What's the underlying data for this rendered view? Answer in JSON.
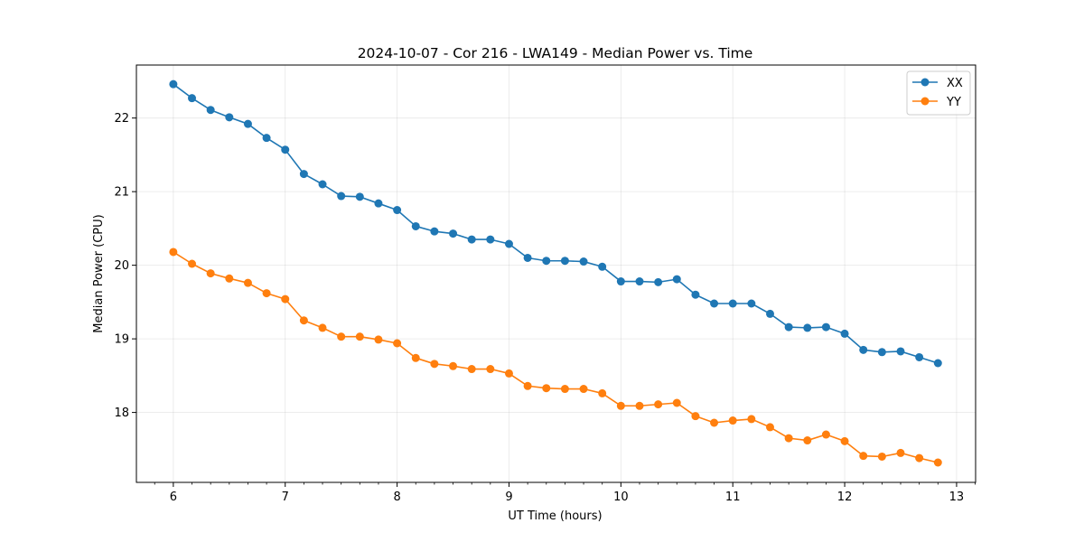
{
  "chart_data": {
    "type": "line",
    "title": "2024-10-07 - Cor 216 - LWA149 - Median Power vs. Time",
    "xlabel": "UT Time (hours)",
    "ylabel": "Median Power (CPU)",
    "xlim": [
      5.67,
      13.17
    ],
    "ylim": [
      17.05,
      22.72
    ],
    "xticks": [
      6,
      7,
      8,
      9,
      10,
      11,
      12,
      13
    ],
    "yticks": [
      18,
      19,
      20,
      21,
      22
    ],
    "grid": true,
    "legend_position": "top-right",
    "x": [
      6.0,
      6.1667,
      6.3333,
      6.5,
      6.6667,
      6.8333,
      7.0,
      7.1667,
      7.3333,
      7.5,
      7.6667,
      7.8333,
      8.0,
      8.1667,
      8.3333,
      8.5,
      8.6667,
      8.8333,
      9.0,
      9.1667,
      9.3333,
      9.5,
      9.6667,
      9.8333,
      10.0,
      10.1667,
      10.3333,
      10.5,
      10.6667,
      10.8333,
      11.0,
      11.1667,
      11.3333,
      11.5,
      11.6667,
      11.8333,
      12.0,
      12.1667,
      12.3333,
      12.5,
      12.6667,
      12.8333
    ],
    "series": [
      {
        "name": "XX",
        "color": "#1f77b4",
        "values": [
          22.46,
          22.27,
          22.11,
          22.01,
          21.92,
          21.73,
          21.57,
          21.24,
          21.1,
          20.94,
          20.93,
          20.84,
          20.75,
          20.53,
          20.46,
          20.43,
          20.35,
          20.35,
          20.29,
          20.1,
          20.06,
          20.06,
          20.05,
          19.98,
          19.78,
          19.78,
          19.77,
          19.81,
          19.6,
          19.48,
          19.48,
          19.48,
          19.34,
          19.16,
          19.15,
          19.16,
          19.07,
          18.85,
          18.82,
          18.83,
          18.75,
          18.67
        ]
      },
      {
        "name": "YY",
        "color": "#ff7f0e",
        "values": [
          20.18,
          20.02,
          19.89,
          19.82,
          19.76,
          19.62,
          19.54,
          19.25,
          19.15,
          19.03,
          19.03,
          18.99,
          18.94,
          18.74,
          18.66,
          18.63,
          18.59,
          18.59,
          18.53,
          18.36,
          18.33,
          18.32,
          18.32,
          18.26,
          18.09,
          18.09,
          18.11,
          18.13,
          17.95,
          17.86,
          17.89,
          17.91,
          17.8,
          17.65,
          17.62,
          17.7,
          17.61,
          17.41,
          17.4,
          17.45,
          17.38,
          17.32
        ]
      }
    ]
  }
}
